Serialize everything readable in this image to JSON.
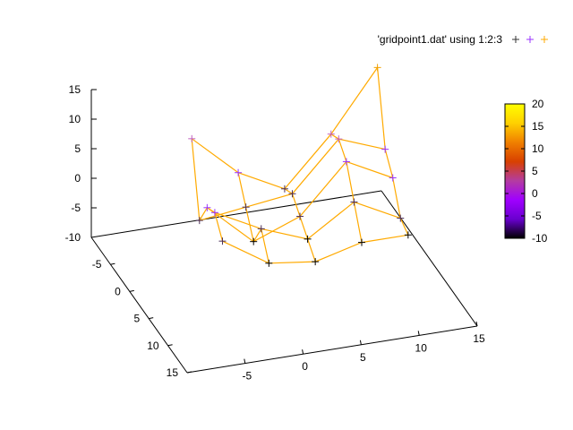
{
  "chart_data": {
    "type": "scatter",
    "title": "",
    "legend": {
      "label": "'gridpoint1.dat' using 1:2:3",
      "placement": "top-right",
      "point_colors": [
        "#333333",
        "#9933ff",
        "#ffaa00"
      ]
    },
    "axes": {
      "x": {
        "range": [
          -10,
          15
        ],
        "ticks": [
          "15",
          "10",
          "5",
          "0",
          "-5"
        ],
        "label": ""
      },
      "y": {
        "range": [
          -10,
          15
        ],
        "ticks": [
          "-5",
          "0",
          "5",
          "10",
          "15"
        ],
        "label": ""
      },
      "z": {
        "range": [
          -10,
          15
        ],
        "ticks": [
          "-10",
          "-5",
          "0",
          "5",
          "10",
          "15"
        ],
        "label": ""
      }
    },
    "colorbar": {
      "range": [
        -10,
        20
      ],
      "ticks": [
        "20",
        "15",
        "10",
        "5",
        "0",
        "-5",
        "-10"
      ],
      "palette": [
        "#000000",
        "#6a00d0",
        "#a000ff",
        "#b43ca0",
        "#d84000",
        "#f08000",
        "#ffd000",
        "#ffff00"
      ]
    },
    "grid": false,
    "line_color": "#ffaa00",
    "point_color_scale": [
      {
        "value": -10,
        "color": "#000000"
      },
      {
        "value": -5,
        "color": "#4b2f5a"
      },
      {
        "value": 0,
        "color": "#9933ff"
      },
      {
        "value": 5,
        "color": "#c060c0"
      },
      {
        "value": 10,
        "color": "#e06030"
      },
      {
        "value": 15,
        "color": "#f0a000"
      },
      {
        "value": 20,
        "color": "#ffee00"
      }
    ],
    "series": [
      {
        "points": [
          {
            "x": 14,
            "y": -8,
            "z": 13
          },
          {
            "x": 14,
            "y": -6,
            "z": 1
          },
          {
            "x": 14,
            "y": -4,
            "z": -2
          },
          {
            "x": 14,
            "y": -2,
            "z": -7
          },
          {
            "x": 14,
            "y": 0,
            "z": -8
          }
        ]
      },
      {
        "points": [
          {
            "x": 10,
            "y": -8,
            "z": 3
          },
          {
            "x": 10,
            "y": -6,
            "z": 4
          },
          {
            "x": 10,
            "y": -4,
            "z": 2
          },
          {
            "x": 10,
            "y": -2,
            "z": -3
          },
          {
            "x": 10,
            "y": 0,
            "z": -8
          }
        ]
      },
      {
        "points": [
          {
            "x": 6,
            "y": -8,
            "z": -5
          },
          {
            "x": 6,
            "y": -6,
            "z": -4
          },
          {
            "x": 6,
            "y": -4,
            "z": -6
          },
          {
            "x": 6,
            "y": -2,
            "z": -8
          },
          {
            "x": 6,
            "y": 0,
            "z": -10
          }
        ]
      },
      {
        "points": [
          {
            "x": 2,
            "y": -8,
            "z": -1
          },
          {
            "x": 2,
            "y": -6,
            "z": -5
          },
          {
            "x": 2,
            "y": -4,
            "z": -9
          },
          {
            "x": 2,
            "y": -2,
            "z": -5
          },
          {
            "x": 2,
            "y": 0,
            "z": -9
          }
        ]
      },
      {
        "points": [
          {
            "x": -2,
            "y": -8,
            "z": 6
          },
          {
            "x": -2,
            "y": -6,
            "z": -6
          },
          {
            "x": -2,
            "y": -4,
            "z": -2
          },
          {
            "x": -2,
            "y": -2,
            "z": -1
          },
          {
            "x": -2,
            "y": 0,
            "z": -4
          }
        ]
      }
    ]
  }
}
